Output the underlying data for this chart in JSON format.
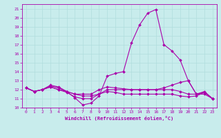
{
  "title": "",
  "xlabel": "Windchill (Refroidissement éolien,°C)",
  "background_color": "#c8ecec",
  "line_color": "#aa00aa",
  "grid_color": "#b0dddd",
  "xlim": [
    -0.5,
    23.5
  ],
  "ylim": [
    10,
    21.5
  ],
  "yticks": [
    10,
    11,
    12,
    13,
    14,
    15,
    16,
    17,
    18,
    19,
    20,
    21
  ],
  "xticks": [
    0,
    1,
    2,
    3,
    4,
    5,
    6,
    7,
    8,
    9,
    10,
    11,
    12,
    13,
    14,
    15,
    16,
    17,
    18,
    19,
    20,
    21,
    22,
    23
  ],
  "series": [
    [
      12.2,
      11.8,
      12.0,
      12.5,
      12.3,
      11.8,
      11.1,
      10.3,
      10.5,
      11.3,
      13.5,
      13.8,
      14.0,
      17.2,
      19.2,
      20.5,
      20.9,
      17.0,
      16.3,
      15.3,
      13.0,
      11.5,
      11.7,
      11.0
    ],
    [
      12.2,
      11.8,
      12.0,
      12.4,
      12.2,
      11.8,
      11.5,
      11.5,
      11.5,
      12.0,
      12.3,
      12.2,
      12.1,
      12.0,
      12.0,
      12.0,
      12.0,
      12.0,
      12.0,
      11.8,
      11.5,
      11.5,
      11.8,
      11.0
    ],
    [
      12.2,
      11.8,
      12.0,
      12.3,
      12.0,
      11.7,
      11.2,
      11.0,
      11.0,
      11.5,
      12.0,
      12.0,
      12.0,
      12.0,
      12.0,
      12.0,
      12.0,
      12.2,
      12.5,
      12.8,
      13.0,
      11.5,
      11.5,
      11.0
    ],
    [
      12.2,
      11.8,
      12.0,
      12.3,
      12.0,
      11.8,
      11.5,
      11.3,
      11.3,
      11.5,
      11.8,
      11.7,
      11.5,
      11.5,
      11.5,
      11.5,
      11.5,
      11.5,
      11.5,
      11.3,
      11.2,
      11.3,
      11.7,
      11.0
    ]
  ]
}
